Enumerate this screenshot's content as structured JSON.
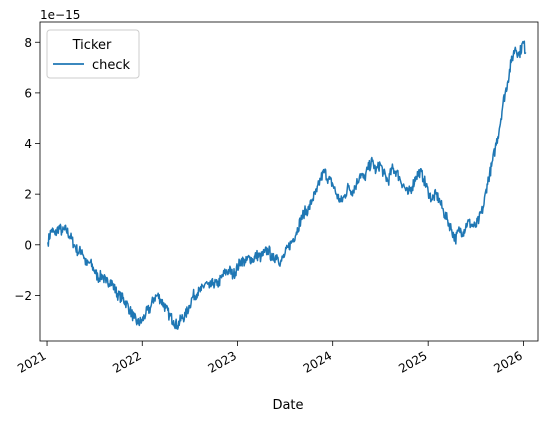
{
  "chart_data": {
    "type": "line",
    "xlabel": "Date",
    "ylabel": "",
    "offset_text": "1e−15",
    "x_ticks": [
      "2021",
      "2022",
      "2023",
      "2024",
      "2025",
      "2026"
    ],
    "y_ticks": [
      "−2",
      "0",
      "2",
      "4",
      "6",
      "8"
    ],
    "xlim": [
      "2020-12-05",
      "2026-02-26"
    ],
    "ylim": [
      -3.8,
      8.8
    ],
    "grid": false,
    "legend": {
      "title": "Ticker",
      "placement": "top-left"
    },
    "series": [
      {
        "name": "check",
        "color": "#1f77b4",
        "points": [
          [
            "2021-01-04",
            0.1
          ],
          [
            "2021-01-18",
            0.6
          ],
          [
            "2021-02-01",
            0.4
          ],
          [
            "2021-02-15",
            0.7
          ],
          [
            "2021-03-01",
            0.5
          ],
          [
            "2021-03-15",
            0.6
          ],
          [
            "2021-04-01",
            0.3
          ],
          [
            "2021-04-15",
            0.0
          ],
          [
            "2021-05-01",
            -0.3
          ],
          [
            "2021-05-15",
            -0.2
          ],
          [
            "2021-06-01",
            -0.8
          ],
          [
            "2021-06-15",
            -0.7
          ],
          [
            "2021-07-01",
            -1.0
          ],
          [
            "2021-07-15",
            -1.3
          ],
          [
            "2021-08-01",
            -1.2
          ],
          [
            "2021-08-15",
            -1.5
          ],
          [
            "2021-09-01",
            -1.4
          ],
          [
            "2021-09-15",
            -1.7
          ],
          [
            "2021-10-01",
            -2.0
          ],
          [
            "2021-10-15",
            -2.1
          ],
          [
            "2021-11-01",
            -2.3
          ],
          [
            "2021-11-15",
            -2.6
          ],
          [
            "2021-12-01",
            -2.9
          ],
          [
            "2021-12-15",
            -3.1
          ],
          [
            "2022-01-01",
            -3.0
          ],
          [
            "2022-01-15",
            -2.7
          ],
          [
            "2022-02-01",
            -2.5
          ],
          [
            "2022-02-15",
            -2.1
          ],
          [
            "2022-03-01",
            -2.0
          ],
          [
            "2022-03-15",
            -2.2
          ],
          [
            "2022-04-01",
            -2.5
          ],
          [
            "2022-04-15",
            -2.8
          ],
          [
            "2022-05-01",
            -3.0
          ],
          [
            "2022-05-15",
            -3.2
          ],
          [
            "2022-06-01",
            -2.9
          ],
          [
            "2022-06-15",
            -2.8
          ],
          [
            "2022-07-01",
            -2.4
          ],
          [
            "2022-07-15",
            -2.0
          ],
          [
            "2022-08-01",
            -1.9
          ],
          [
            "2022-08-15",
            -1.8
          ],
          [
            "2022-09-01",
            -1.5
          ],
          [
            "2022-09-15",
            -1.7
          ],
          [
            "2022-10-01",
            -1.5
          ],
          [
            "2022-10-15",
            -1.6
          ],
          [
            "2022-11-01",
            -1.3
          ],
          [
            "2022-11-15",
            -1.1
          ],
          [
            "2022-12-01",
            -1.0
          ],
          [
            "2022-12-15",
            -1.2
          ],
          [
            "2023-01-01",
            -0.9
          ],
          [
            "2023-01-15",
            -0.6
          ],
          [
            "2023-02-01",
            -0.7
          ],
          [
            "2023-02-15",
            -0.5
          ],
          [
            "2023-03-01",
            -0.6
          ],
          [
            "2023-03-15",
            -0.4
          ],
          [
            "2023-04-01",
            -0.5
          ],
          [
            "2023-04-15",
            -0.3
          ],
          [
            "2023-05-01",
            -0.2
          ],
          [
            "2023-05-15",
            -0.6
          ],
          [
            "2023-06-01",
            -0.4
          ],
          [
            "2023-06-15",
            -0.7
          ],
          [
            "2023-07-01",
            -0.4
          ],
          [
            "2023-07-15",
            -0.1
          ],
          [
            "2023-08-01",
            0.2
          ],
          [
            "2023-08-15",
            0.5
          ],
          [
            "2023-09-01",
            1.0
          ],
          [
            "2023-09-15",
            1.3
          ],
          [
            "2023-10-01",
            1.4
          ],
          [
            "2023-10-15",
            1.8
          ],
          [
            "2023-11-01",
            2.1
          ],
          [
            "2023-11-15",
            2.6
          ],
          [
            "2023-12-01",
            2.9
          ],
          [
            "2023-12-15",
            2.6
          ],
          [
            "2024-01-01",
            2.4
          ],
          [
            "2024-01-15",
            2.0
          ],
          [
            "2024-02-01",
            1.7
          ],
          [
            "2024-02-15",
            1.9
          ],
          [
            "2024-03-01",
            2.3
          ],
          [
            "2024-03-15",
            2.1
          ],
          [
            "2024-04-01",
            2.4
          ],
          [
            "2024-04-15",
            2.8
          ],
          [
            "2024-05-01",
            2.6
          ],
          [
            "2024-05-15",
            3.0
          ],
          [
            "2024-06-01",
            3.3
          ],
          [
            "2024-06-15",
            2.9
          ],
          [
            "2024-07-01",
            3.2
          ],
          [
            "2024-07-15",
            2.8
          ],
          [
            "2024-08-01",
            2.5
          ],
          [
            "2024-08-15",
            3.0
          ],
          [
            "2024-09-01",
            2.9
          ],
          [
            "2024-09-15",
            2.6
          ],
          [
            "2024-10-01",
            2.3
          ],
          [
            "2024-10-15",
            2.0
          ],
          [
            "2024-11-01",
            2.3
          ],
          [
            "2024-11-15",
            2.7
          ],
          [
            "2024-12-01",
            2.9
          ],
          [
            "2024-12-15",
            2.6
          ],
          [
            "2025-01-01",
            2.1
          ],
          [
            "2025-01-15",
            1.8
          ],
          [
            "2025-02-01",
            2.0
          ],
          [
            "2025-02-15",
            1.7
          ],
          [
            "2025-03-01",
            1.3
          ],
          [
            "2025-03-15",
            1.0
          ],
          [
            "2025-04-01",
            0.6
          ],
          [
            "2025-04-15",
            0.2
          ],
          [
            "2025-05-01",
            0.6
          ],
          [
            "2025-05-15",
            0.5
          ],
          [
            "2025-06-01",
            0.9
          ],
          [
            "2025-06-15",
            0.8
          ],
          [
            "2025-07-01",
            0.7
          ],
          [
            "2025-07-15",
            1.0
          ],
          [
            "2025-08-01",
            1.5
          ],
          [
            "2025-08-15",
            2.4
          ],
          [
            "2025-09-01",
            3.1
          ],
          [
            "2025-09-15",
            3.8
          ],
          [
            "2025-10-01",
            4.6
          ],
          [
            "2025-10-15",
            5.6
          ],
          [
            "2025-11-01",
            6.4
          ],
          [
            "2025-11-15",
            7.2
          ],
          [
            "2025-12-01",
            7.8
          ],
          [
            "2025-12-15",
            7.5
          ],
          [
            "2026-01-01",
            8.0
          ],
          [
            "2026-01-10",
            7.6
          ]
        ]
      }
    ]
  }
}
